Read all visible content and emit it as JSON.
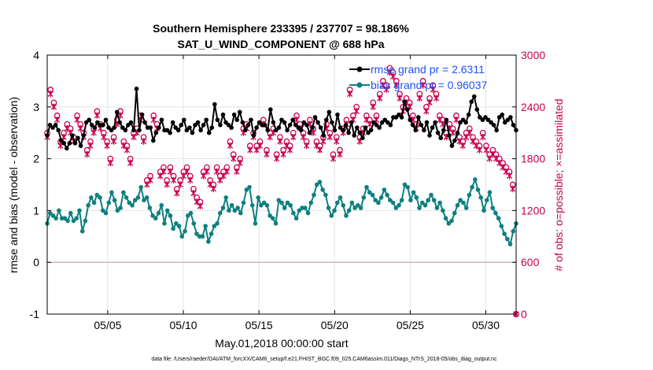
{
  "chart_data": {
    "type": "line",
    "title_line1": "Southern Hemisphere 233395 / 237707 = 98.186%",
    "title_line2": "SAT_U_WIND_COMPONENT @ 688 hPa",
    "xlabel": "May.01,2018 00:00:00 start",
    "ylabel_left": "rmse and bias (model - observation)",
    "ylabel_right": "# of obs: o=possible; ×=assimilated",
    "footer": "data file: /Users/raeder/DAI/ATM_forcXX/CAM6_setup/f.e21.FHIST_BGC.f09_025.CAM6assim.011/Diags_NTrS_2018-05/obs_diag_output.nc",
    "x_range": [
      1.0,
      32.0
    ],
    "ylim_left": [
      -1,
      4
    ],
    "ylim_right": [
      0,
      3000
    ],
    "left_ticks": [
      "-1",
      "0",
      "1",
      "2",
      "3",
      "4"
    ],
    "right_ticks": [
      "0",
      "600",
      "1200",
      "1800",
      "2400",
      "3000"
    ],
    "x_ticks": [
      {
        "label": "05/05",
        "value": 5
      },
      {
        "label": "05/10",
        "value": 10
      },
      {
        "label": "05/15",
        "value": 15
      },
      {
        "label": "05/20",
        "value": 20
      },
      {
        "label": "05/25",
        "value": 25
      },
      {
        "label": "05/30",
        "value": 30
      }
    ],
    "legend": [
      {
        "name": "rmse grand pr = 2.6311",
        "color": "#000000"
      },
      {
        "name": "bias grand pr = 0.96037",
        "color": "#0f7f7f"
      }
    ],
    "colors": {
      "rmse": "#000000",
      "bias": "#0f7f7f",
      "obs": "#c8004f",
      "zero_line": "#c8b8bc"
    },
    "rmse": [
      2.45,
      2.65,
      2.6,
      2.65,
      2.55,
      2.35,
      2.3,
      2.2,
      2.3,
      2.45,
      2.3,
      2.4,
      2.25,
      2.45,
      2.7,
      2.75,
      2.65,
      2.6,
      2.7,
      2.65,
      2.65,
      2.75,
      2.6,
      2.55,
      2.6,
      2.9,
      2.7,
      2.6,
      2.55,
      2.65,
      2.7,
      2.55,
      3.35,
      2.55,
      2.85,
      2.7,
      2.6,
      2.6,
      2.35,
      2.5,
      2.6,
      2.75,
      2.55,
      2.55,
      2.5,
      2.7,
      2.6,
      2.55,
      2.65,
      2.75,
      2.55,
      2.6,
      2.5,
      2.65,
      2.7,
      2.55,
      2.65,
      2.75,
      2.5,
      2.6,
      3.05,
      2.75,
      2.65,
      2.85,
      2.7,
      2.65,
      2.6,
      2.85,
      2.75,
      2.9,
      2.7,
      2.55,
      2.65,
      2.75,
      2.45,
      2.6,
      2.7,
      2.65,
      2.65,
      2.55,
      2.95,
      2.7,
      2.55,
      2.6,
      2.75,
      2.7,
      2.55,
      2.65,
      2.75,
      2.65,
      2.6,
      2.55,
      2.7,
      2.65,
      2.5,
      2.6,
      2.8,
      2.7,
      2.6,
      2.45,
      2.75,
      2.9,
      2.7,
      2.55,
      2.85,
      2.6,
      2.55,
      2.65,
      2.5,
      2.7,
      2.45,
      2.6,
      2.5,
      2.4,
      2.6,
      2.5,
      2.55,
      2.7,
      2.65,
      2.6,
      2.7,
      2.75,
      2.7,
      2.65,
      2.8,
      2.8,
      2.85,
      2.8,
      3.1,
      2.95,
      2.75,
      2.65,
      2.55,
      2.8,
      2.65,
      2.55,
      2.7,
      2.45,
      2.6,
      2.7,
      2.5,
      2.4,
      2.55,
      2.75,
      2.45,
      2.25,
      2.35,
      2.5,
      2.7,
      2.75,
      2.7,
      2.85,
      3.1,
      3.2,
      2.95,
      2.8,
      2.75,
      2.8,
      2.75,
      2.7,
      2.65,
      2.55,
      2.8,
      2.85,
      2.7,
      2.75,
      2.8,
      2.65,
      2.55
    ],
    "bias": [
      0.75,
      0.95,
      0.9,
      0.85,
      1.0,
      0.85,
      0.85,
      0.8,
      0.95,
      0.8,
      0.85,
      1.0,
      0.6,
      0.8,
      1.1,
      1.25,
      1.15,
      1.3,
      1.25,
      1.0,
      0.95,
      1.15,
      1.35,
      1.2,
      1.0,
      1.05,
      1.35,
      1.25,
      1.15,
      1.1,
      1.2,
      1.25,
      1.45,
      1.2,
      1.25,
      1.05,
      0.9,
      0.85,
      0.95,
      1.1,
      0.75,
      1.0,
      0.9,
      0.65,
      0.75,
      0.7,
      0.5,
      0.6,
      0.9,
      0.95,
      0.75,
      0.55,
      0.5,
      0.5,
      0.7,
      0.4,
      0.55,
      0.7,
      0.75,
      0.95,
      1.05,
      1.25,
      1.0,
      1.1,
      1.0,
      1.05,
      0.95,
      1.15,
      1.4,
      1.45,
      1.1,
      0.75,
      1.25,
      1.1,
      1.15,
      1.1,
      0.9,
      0.85,
      0.75,
      1.2,
      1.15,
      1.05,
      1.15,
      1.1,
      0.95,
      0.85,
      1.0,
      1.05,
      1.05,
      0.95,
      1.15,
      1.3,
      1.5,
      1.55,
      1.4,
      1.3,
      1.05,
      0.9,
      1.0,
      1.15,
      1.25,
      1.1,
      0.9,
      1.0,
      1.15,
      1.05,
      1.1,
      1.05,
      1.25,
      1.45,
      1.35,
      1.3,
      1.2,
      1.15,
      1.25,
      1.4,
      1.3,
      1.2,
      1.15,
      1.05,
      1.1,
      1.2,
      1.5,
      1.45,
      1.2,
      1.35,
      1.25,
      1.05,
      1.15,
      1.1,
      1.2,
      1.3,
      1.2,
      1.05,
      1.15,
      1.0,
      0.85,
      0.75,
      0.8,
      0.95,
      1.1,
      1.2,
      1.15,
      1.05,
      1.3,
      1.45,
      1.6,
      1.4,
      1.25,
      1.0,
      1.2,
      1.35,
      1.05,
      0.95,
      0.85,
      0.7,
      0.55,
      0.45,
      0.35,
      0.6,
      0.75
    ],
    "obs_possible": [
      2100,
      2600,
      2450,
      2300,
      2000,
      2100,
      2200,
      2150,
      2050,
      2300,
      2200,
      2100,
      1900,
      2000,
      2150,
      2350,
      2200,
      2100,
      2000,
      1800,
      2050,
      2250,
      2350,
      2000,
      1950,
      1800,
      2100,
      2150,
      2300,
      2050,
      1550,
      1600,
      2300,
      2200,
      1650,
      1700,
      1550,
      1700,
      1600,
      1450,
      1550,
      1650,
      1700,
      1600,
      1450,
      1350,
      1300,
      1650,
      1700,
      1550,
      1500,
      1700,
      1600,
      1650,
      1700,
      2000,
      1850,
      1700,
      1800,
      2150,
      2200,
      1950,
      2100,
      1950,
      2000,
      2250,
      1900,
      2100,
      2150,
      1850,
      2050,
      1900,
      2000,
      1950,
      2100,
      2300,
      2200,
      2100,
      2000,
      2250,
      2150,
      2000,
      1950,
      2050,
      2200,
      2100,
      1850,
      2050,
      1900,
      2150,
      2250,
      2600,
      2300,
      2400,
      2050,
      2150,
      2300,
      2250,
      2450,
      2300,
      2550,
      2700,
      2650,
      2850,
      2800,
      2700,
      2550,
      2400,
      2500,
      2450,
      2300,
      2200,
      2550,
      2700,
      2400,
      2500,
      2650,
      2550,
      2300,
      2250,
      2100,
      2200,
      2150,
      2300,
      2050,
      2000,
      2100,
      2150,
      2050,
      2000,
      1950,
      2100,
      1950,
      1850,
      1900,
      1850,
      1800,
      1750,
      1700,
      1650,
      1500,
      0
    ],
    "obs_assimilated": [
      2050,
      2550,
      2400,
      2250,
      1950,
      2050,
      2150,
      2100,
      2000,
      2250,
      2150,
      2050,
      1850,
      1950,
      2100,
      2300,
      2150,
      2050,
      1950,
      1750,
      2000,
      2200,
      2300,
      1950,
      1900,
      1750,
      2050,
      2100,
      2250,
      2000,
      1500,
      1550,
      2250,
      2150,
      1600,
      1650,
      1500,
      1650,
      1550,
      1400,
      1500,
      1600,
      1650,
      1550,
      1400,
      1300,
      1250,
      1600,
      1650,
      1500,
      1450,
      1650,
      1550,
      1600,
      1650,
      1950,
      1800,
      1650,
      1750,
      2100,
      2150,
      1900,
      2050,
      1900,
      1950,
      2200,
      1850,
      2050,
      2100,
      1800,
      2000,
      1850,
      1950,
      1900,
      2050,
      2250,
      2150,
      2050,
      1950,
      2200,
      2100,
      1950,
      1900,
      2000,
      2150,
      2050,
      1800,
      2000,
      1850,
      2100,
      2200,
      2550,
      2250,
      2350,
      2000,
      2100,
      2250,
      2200,
      2400,
      2250,
      2500,
      2650,
      2600,
      2800,
      2750,
      2650,
      2500,
      2350,
      2450,
      2400,
      2250,
      2150,
      2500,
      2650,
      2350,
      2450,
      2600,
      2500,
      2250,
      2200,
      2050,
      2150,
      2100,
      2250,
      2000,
      1950,
      2050,
      2100,
      2000,
      1950,
      1900,
      2050,
      1900,
      1800,
      1850,
      1800,
      1750,
      1700,
      1650,
      1600,
      1450,
      0
    ]
  }
}
